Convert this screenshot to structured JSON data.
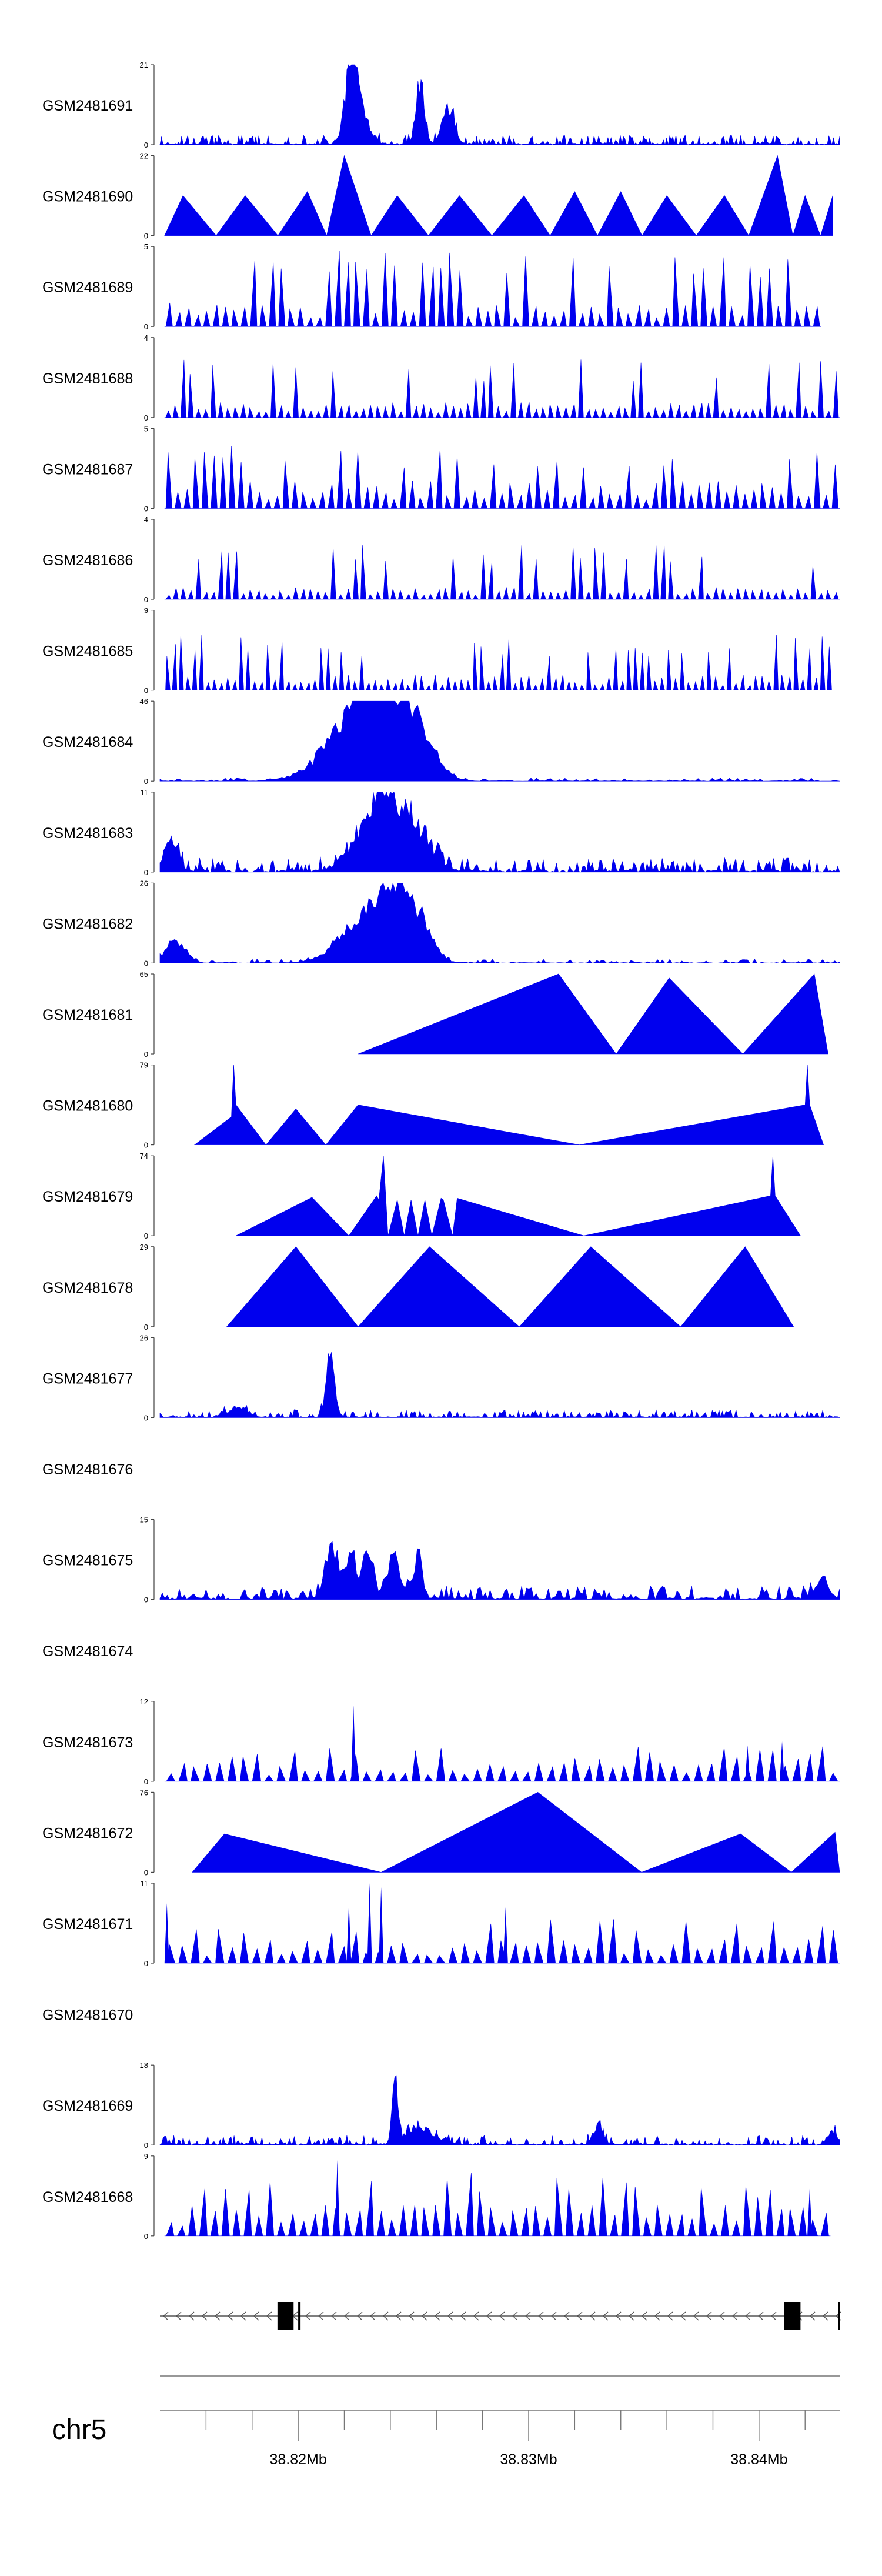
{
  "chart_data": {
    "type": "area",
    "title": "",
    "chromosome": "chr5",
    "x_range_mb": [
      38.814,
      38.8435
    ],
    "x_ticks": [
      {
        "pos": 38.82,
        "label": "38.82Mb"
      },
      {
        "pos": 38.83,
        "label": "38.83Mb"
      },
      {
        "pos": 38.84,
        "label": "38.84Mb"
      }
    ],
    "fill_color": "#0000ee",
    "tracks": [
      {
        "name": "GSM2481691",
        "ymax": "21",
        "ymin": "0",
        "shape": "peaky",
        "seed": 11,
        "base": 0.12,
        "density": 110,
        "peaks": [
          [
            38.8223,
            0.9,
            0.00025
          ],
          [
            38.8253,
            0.88,
            0.00018
          ],
          [
            38.8226,
            0.55,
            0.0004
          ],
          [
            38.8265,
            0.55,
            0.00025
          ]
        ]
      },
      {
        "name": "GSM2481690",
        "ymax": "22",
        "ymin": "0",
        "shape": "sparse",
        "seed": 23,
        "start": 38.8142,
        "end": 38.8432,
        "peaks": [
          [
            38.815,
            0.5
          ],
          [
            38.8177,
            0.5
          ],
          [
            38.8204,
            0.55
          ],
          [
            38.822,
            1.0
          ],
          [
            38.8243,
            0.5
          ],
          [
            38.827,
            0.5
          ],
          [
            38.8298,
            0.5
          ],
          [
            38.832,
            0.55
          ],
          [
            38.834,
            0.55
          ],
          [
            38.836,
            0.5
          ],
          [
            38.8385,
            0.5
          ],
          [
            38.8408,
            1.0
          ],
          [
            38.842,
            0.5
          ],
          [
            38.8432,
            0.5
          ]
        ]
      },
      {
        "name": "GSM2481689",
        "ymax": "5",
        "ymin": "0",
        "shape": "spiky",
        "seed": 37,
        "start": 38.8142,
        "end": 38.8427,
        "density": 70,
        "hi": 0.95,
        "lo": 0.3
      },
      {
        "name": "GSM2481688",
        "ymax": "4",
        "ymin": "0",
        "shape": "spiky",
        "seed": 41,
        "start": 38.8142,
        "end": 38.8435,
        "density": 90,
        "hi": 0.75,
        "lo": 0.2
      },
      {
        "name": "GSM2481687",
        "ymax": "5",
        "ymin": "0",
        "shape": "spiky",
        "seed": 53,
        "start": 38.8142,
        "end": 38.8435,
        "density": 75,
        "hi": 0.8,
        "lo": 0.35
      },
      {
        "name": "GSM2481686",
        "ymax": "4",
        "ymin": "0",
        "shape": "spiky",
        "seed": 61,
        "start": 38.8142,
        "end": 38.8435,
        "density": 90,
        "hi": 0.7,
        "lo": 0.15
      },
      {
        "name": "GSM2481685",
        "ymax": "9",
        "ymin": "0",
        "shape": "spiky",
        "seed": 71,
        "start": 38.8142,
        "end": 38.8432,
        "density": 100,
        "hi": 0.7,
        "lo": 0.2
      },
      {
        "name": "GSM2481684",
        "ymax": "46",
        "ymin": "0",
        "shape": "peaky",
        "seed": 83,
        "base": 0.04,
        "density": 60,
        "peaks": [
          [
            38.8222,
            0.75,
            0.0012
          ],
          [
            38.825,
            0.9,
            0.0008
          ],
          [
            38.8238,
            0.8,
            0.0007
          ],
          [
            38.8227,
            0.6,
            0.0005
          ]
        ]
      },
      {
        "name": "GSM2481683",
        "ymax": "11",
        "ymin": "0",
        "shape": "peaky",
        "seed": 97,
        "base": 0.18,
        "density": 90,
        "peaks": [
          [
            38.8239,
            0.9,
            0.0006
          ],
          [
            38.823,
            0.55,
            0.0008
          ],
          [
            38.8252,
            0.6,
            0.0006
          ],
          [
            38.8145,
            0.45,
            0.0003
          ]
        ]
      },
      {
        "name": "GSM2481682",
        "ymax": "26",
        "ymin": "0",
        "shape": "peaky",
        "seed": 101,
        "base": 0.05,
        "density": 70,
        "peaks": [
          [
            38.8241,
            0.9,
            0.0007
          ],
          [
            38.8228,
            0.6,
            0.001
          ],
          [
            38.8252,
            0.55,
            0.0006
          ],
          [
            38.8147,
            0.35,
            0.0004
          ]
        ]
      },
      {
        "name": "GSM2481681",
        "ymax": "65",
        "ymin": "0",
        "shape": "poly",
        "seed": 0,
        "points": [
          [
            38.8226,
            0
          ],
          [
            38.8313,
            1.0
          ],
          [
            38.8338,
            0
          ],
          [
            38.8361,
            0.95
          ],
          [
            38.8393,
            0
          ],
          [
            38.8424,
            1.0
          ],
          [
            38.843,
            0
          ]
        ]
      },
      {
        "name": "GSM2481680",
        "ymax": "79",
        "ymin": "0",
        "shape": "poly",
        "seed": 0,
        "points": [
          [
            38.8155,
            0
          ],
          [
            38.8171,
            0.35
          ],
          [
            38.8172,
            1.0
          ],
          [
            38.8173,
            0.5
          ],
          [
            38.8186,
            0
          ],
          [
            38.8199,
            0.45
          ],
          [
            38.8212,
            0
          ],
          [
            38.8226,
            0.5
          ],
          [
            38.8322,
            0
          ],
          [
            38.842,
            0.5
          ],
          [
            38.8421,
            1.0
          ],
          [
            38.8422,
            0.5
          ],
          [
            38.8428,
            0
          ]
        ]
      },
      {
        "name": "GSM2481679",
        "ymax": "74",
        "ymin": "0",
        "shape": "poly",
        "seed": 0,
        "points": [
          [
            38.8173,
            0
          ],
          [
            38.8206,
            0.48
          ],
          [
            38.8222,
            0
          ],
          [
            38.8234,
            0.5
          ],
          [
            38.8235,
            0.45
          ],
          [
            38.8237,
            1.0
          ],
          [
            38.8239,
            0
          ],
          [
            38.8243,
            0.45
          ],
          [
            38.8246,
            0
          ],
          [
            38.8249,
            0.45
          ],
          [
            38.8252,
            0
          ],
          [
            38.8255,
            0.45
          ],
          [
            38.8258,
            0
          ],
          [
            38.8262,
            0.47
          ],
          [
            38.8263,
            0.45
          ],
          [
            38.8267,
            0
          ],
          [
            38.8269,
            0.47
          ],
          [
            38.8324,
            0
          ],
          [
            38.8405,
            0.5
          ],
          [
            38.8406,
            1.0
          ],
          [
            38.8407,
            0.5
          ],
          [
            38.8418,
            0
          ]
        ]
      },
      {
        "name": "GSM2481678",
        "ymax": "29",
        "ymin": "0",
        "shape": "poly",
        "seed": 0,
        "points": [
          [
            38.8169,
            0
          ],
          [
            38.8199,
            1.0
          ],
          [
            38.8226,
            0
          ],
          [
            38.8257,
            1.0
          ],
          [
            38.8296,
            0
          ],
          [
            38.8327,
            1.0
          ],
          [
            38.8366,
            0
          ],
          [
            38.8394,
            1.0
          ],
          [
            38.8415,
            0
          ]
        ]
      },
      {
        "name": "GSM2481677",
        "ymax": "26",
        "ymin": "0",
        "shape": "peaky",
        "seed": 113,
        "base": 0.1,
        "density": 100,
        "peaks": [
          [
            38.8214,
            0.95,
            0.00018
          ],
          [
            38.8174,
            0.15,
            0.0004
          ]
        ]
      },
      {
        "name": "GSM2481676",
        "ymax": "",
        "ymin": "",
        "shape": "empty",
        "seed": 0
      },
      {
        "name": "GSM2481675",
        "ymax": "15",
        "ymin": "0",
        "shape": "peaky",
        "seed": 127,
        "base": 0.18,
        "density": 70,
        "peaks": [
          [
            38.8215,
            0.8,
            0.0003
          ],
          [
            38.8223,
            0.75,
            0.0002
          ],
          [
            38.823,
            0.7,
            0.0002
          ],
          [
            38.8241,
            0.6,
            0.0003
          ],
          [
            38.8252,
            0.6,
            0.0002
          ],
          [
            38.8427,
            0.3,
            0.0003
          ]
        ]
      },
      {
        "name": "GSM2481674",
        "ymax": "",
        "ymin": "",
        "shape": "empty",
        "seed": 0
      },
      {
        "name": "GSM2481673",
        "ymax": "12",
        "ymin": "0",
        "shape": "spiky",
        "seed": 139,
        "start": 38.8142,
        "end": 38.8435,
        "density": 55,
        "hi": 0.45,
        "lo": 0.25,
        "extra": [
          [
            38.8224,
            0.95
          ],
          [
            38.841,
            0.5
          ],
          [
            38.8395,
            0.45
          ]
        ]
      },
      {
        "name": "GSM2481672",
        "ymax": "76",
        "ymin": "0",
        "shape": "poly",
        "seed": 0,
        "points": [
          [
            38.8154,
            0
          ],
          [
            38.8168,
            0.48
          ],
          [
            38.8236,
            0
          ],
          [
            38.8304,
            1.0
          ],
          [
            38.8349,
            0
          ],
          [
            38.8392,
            0.48
          ],
          [
            38.8414,
            0
          ],
          [
            38.8433,
            0.5
          ],
          [
            38.8435,
            0
          ]
        ]
      },
      {
        "name": "GSM2481671",
        "ymax": "11",
        "ymin": "0",
        "shape": "spiky",
        "seed": 151,
        "start": 38.8142,
        "end": 38.8435,
        "density": 55,
        "hi": 0.6,
        "lo": 0.3,
        "extra": [
          [
            38.8231,
            1.0
          ],
          [
            38.8236,
            0.95
          ],
          [
            38.8222,
            0.75
          ],
          [
            38.829,
            0.7
          ],
          [
            38.8143,
            0.75
          ]
        ]
      },
      {
        "name": "GSM2481670",
        "ymax": "",
        "ymin": "",
        "shape": "empty",
        "seed": 0
      },
      {
        "name": "GSM2481669",
        "ymax": "18",
        "ymin": "0",
        "shape": "peaky",
        "seed": 163,
        "base": 0.12,
        "density": 110,
        "peaks": [
          [
            38.8242,
            0.95,
            0.00012
          ],
          [
            38.8253,
            0.25,
            0.0006
          ],
          [
            38.833,
            0.3,
            0.0002
          ],
          [
            38.8432,
            0.2,
            0.0002
          ]
        ]
      },
      {
        "name": "GSM2481668",
        "ymax": "9",
        "ymin": "0",
        "shape": "spiky",
        "seed": 173,
        "start": 38.8142,
        "end": 38.8431,
        "density": 60,
        "hi": 0.8,
        "lo": 0.4,
        "extra": [
          [
            38.8217,
            0.95
          ],
          [
            38.8422,
            0.6
          ]
        ]
      }
    ],
    "gene_model": {
      "strand": "-",
      "exons": [
        [
          38.8191,
          38.8198
        ],
        [
          38.82,
          38.8201
        ],
        [
          38.8411,
          38.8418
        ]
      ],
      "line_range": [
        38.814,
        38.8435
      ]
    }
  }
}
